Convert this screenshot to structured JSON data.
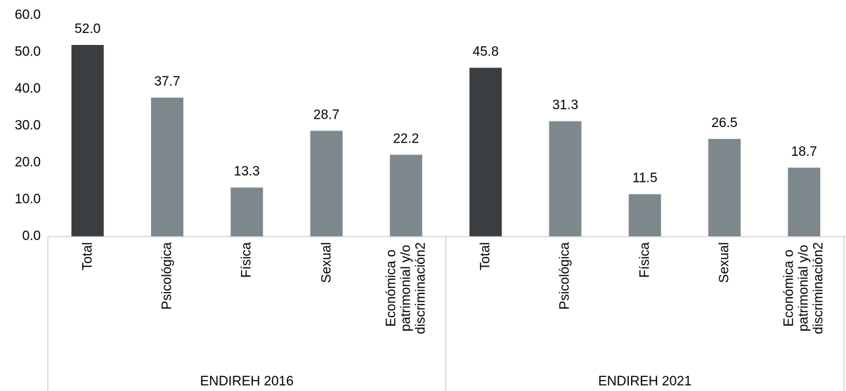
{
  "chart_data": {
    "type": "bar",
    "categories": [
      "Total",
      "Psicológica",
      "Física",
      "Sexual",
      "Económica o\npatrimonial y/o\ndiscriminación2",
      "Total",
      "Psicológica",
      "Física",
      "Sexual",
      "Económica o\npatrimonial y/o\ndiscriminación2"
    ],
    "group_labels": [
      "ENDIREH 2016",
      "ENDIREH 2021"
    ],
    "values": [
      52.0,
      37.7,
      13.3,
      28.7,
      22.2,
      45.8,
      31.3,
      11.5,
      26.5,
      18.7
    ],
    "value_labels": [
      "52.0",
      "37.7",
      "13.3",
      "28.7",
      "22.2",
      "45.8",
      "31.3",
      "11.5",
      "26.5",
      "18.7"
    ],
    "colors": [
      "#3a3e41",
      "#7e878c",
      "#7e878c",
      "#7e878c",
      "#7e878c",
      "#3a3e41",
      "#7e878c",
      "#7e878c",
      "#7e878c",
      "#7e878c"
    ],
    "ylim": [
      0,
      60
    ],
    "yticks": [
      {
        "value": 0,
        "label": "0.0"
      },
      {
        "value": 10,
        "label": "10.0"
      },
      {
        "value": 20,
        "label": "20.0"
      },
      {
        "value": 30,
        "label": "30.0"
      },
      {
        "value": 40,
        "label": "40.0"
      },
      {
        "value": 50,
        "label": "50.0"
      },
      {
        "value": 60,
        "label": "60.0"
      }
    ],
    "grid": false
  }
}
